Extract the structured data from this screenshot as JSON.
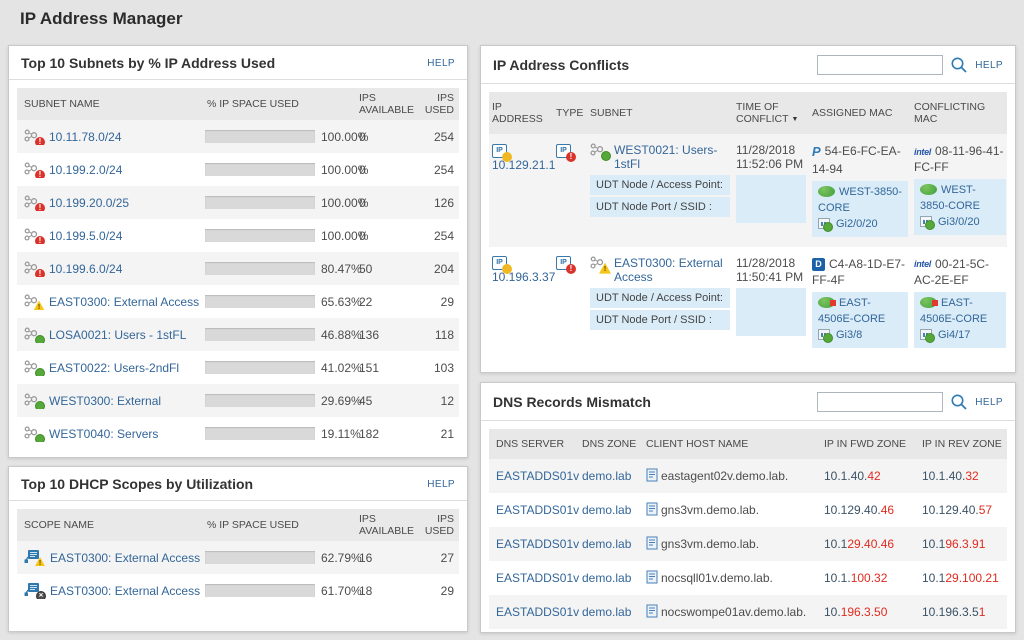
{
  "page": {
    "title": "IP Address Manager"
  },
  "ui": {
    "help": "HELP"
  },
  "panels": {
    "subnets": {
      "title": "Top 10 Subnets by % IP Address Used",
      "columns": {
        "name": "SUBNET NAME",
        "pct": "% IP SPACE USED",
        "available": "IPS AVAILABLE",
        "used": "IPS USED"
      },
      "rows": [
        {
          "name": "10.11.78.0/24",
          "status": "critical",
          "color": "red",
          "pct": 100,
          "pct_label": "100.00%",
          "available": "0",
          "used": "254"
        },
        {
          "name": "10.199.2.0/24",
          "status": "critical",
          "color": "red",
          "pct": 100,
          "pct_label": "100.00%",
          "available": "0",
          "used": "254"
        },
        {
          "name": "10.199.20.0/25",
          "status": "critical",
          "color": "red",
          "pct": 100,
          "pct_label": "100.00%",
          "available": "0",
          "used": "126"
        },
        {
          "name": "10.199.5.0/24",
          "status": "critical",
          "color": "red",
          "pct": 100,
          "pct_label": "100.00%",
          "available": "0",
          "used": "254"
        },
        {
          "name": "10.199.6.0/24",
          "status": "critical",
          "color": "red",
          "pct": 80.47,
          "pct_label": "80.47%",
          "available": "50",
          "used": "204"
        },
        {
          "name": "EAST0300: External Access",
          "status": "warning",
          "color": "yellow",
          "pct": 65.63,
          "pct_label": "65.63%",
          "available": "22",
          "used": "29"
        },
        {
          "name": "LOSA0021: Users - 1stFL",
          "status": "up",
          "color": "green",
          "pct": 46.88,
          "pct_label": "46.88%",
          "available": "136",
          "used": "118"
        },
        {
          "name": "EAST0022: Users-2ndFl",
          "status": "up",
          "color": "green",
          "pct": 41.02,
          "pct_label": "41.02%",
          "available": "151",
          "used": "103"
        },
        {
          "name": "WEST0300: External",
          "status": "up",
          "color": "green",
          "pct": 29.69,
          "pct_label": "29.69%",
          "available": "45",
          "used": "12"
        },
        {
          "name": "WEST0040: Servers",
          "status": "up",
          "color": "green",
          "pct": 19.11,
          "pct_label": "19.11%",
          "available": "182",
          "used": "21"
        }
      ]
    },
    "dhcp": {
      "title": "Top 10 DHCP Scopes by Utilization",
      "columns": {
        "name": "SCOPE NAME",
        "pct": "% IP SPACE USED",
        "available": "IPS AVAILABLE",
        "used": "IPS USED"
      },
      "rows": [
        {
          "name": "EAST0300: External Access",
          "status": "warning",
          "color": "yellow",
          "pct": 62.79,
          "pct_label": "62.79%",
          "available": "16",
          "used": "27"
        },
        {
          "name": "EAST0300: External Access",
          "status": "unknown",
          "color": "gray",
          "pct": 61.7,
          "pct_label": "61.70%",
          "available": "18",
          "used": "29"
        }
      ]
    },
    "conflicts": {
      "title": "IP Address Conflicts",
      "search_value": "",
      "columns": {
        "ip": "IP ADDRESS",
        "type": "TYPE",
        "subnet": "SUBNET",
        "time": "TIME OF CONFLICT",
        "assigned": "ASSIGNED MAC",
        "conflicting": "CONFLICTING MAC"
      },
      "udt_node_label": "UDT Node / Access Point:",
      "udt_port_label": "UDT Node Port / SSID :",
      "rows": [
        {
          "ip": "10.129.21.1",
          "ip_status": "transient",
          "type_status": "conflict",
          "subnet": "WEST0021: Users-1stFl",
          "subnet_status": "up",
          "time": "11/28/2018 11:52:06 PM",
          "assigned": {
            "vendor": "hp",
            "vendor_label": "P",
            "mac": "54-E6-FC-EA-14-94",
            "node": "WEST-3850-CORE",
            "node_status": "up",
            "port": "Gi2/0/20"
          },
          "conflicting": {
            "vendor": "intel",
            "vendor_label": "intel",
            "mac": "08-11-96-41-FC-FF",
            "node": "WEST-3850-CORE",
            "node_status": "up",
            "port": "Gi3/0/20"
          }
        },
        {
          "ip": "10.196.3.37",
          "ip_status": "transient",
          "type_status": "conflict",
          "subnet": "EAST0300: External Access",
          "subnet_status": "warning",
          "time": "11/28/2018 11:50:41 PM",
          "assigned": {
            "vendor": "dell",
            "vendor_label": "D",
            "mac": "C4-A8-1D-E7-FF-4F",
            "node": "EAST-4506E-CORE",
            "node_status": "up-issue",
            "port": "Gi3/8"
          },
          "conflicting": {
            "vendor": "intel",
            "vendor_label": "intel",
            "mac": "00-21-5C-AC-2E-EF",
            "node": "EAST-4506E-CORE",
            "node_status": "up-issue",
            "port": "Gi4/17"
          }
        }
      ]
    },
    "dns": {
      "title": "DNS Records Mismatch",
      "search_value": "",
      "columns": {
        "server": "DNS SERVER",
        "zone": "DNS ZONE",
        "host": "CLIENT HOST NAME",
        "fwd": "IP IN FWD ZONE",
        "rev": "IP IN REV ZONE"
      },
      "rows": [
        {
          "server": "EASTADDS01v",
          "zone": "demo.lab",
          "host": "eastagent02v.demo.lab.",
          "fwd_ok": "10.1.40.",
          "fwd_bad": "42",
          "rev_ok": "10.1.40.",
          "rev_bad": "32"
        },
        {
          "server": "EASTADDS01v",
          "zone": "demo.lab",
          "host": "gns3vm.demo.lab.",
          "fwd_ok": "10.129.40.",
          "fwd_bad": "46",
          "rev_ok": "10.129.40.",
          "rev_bad": "57"
        },
        {
          "server": "EASTADDS01v",
          "zone": "demo.lab",
          "host": "gns3vm.demo.lab.",
          "fwd_ok": "10.1",
          "fwd_bad": "29.40.46",
          "rev_ok": "10.1",
          "rev_bad": "96.3.91"
        },
        {
          "server": "EASTADDS01v",
          "zone": "demo.lab",
          "host": "nocsqll01v.demo.lab.",
          "fwd_ok": "10.1.",
          "fwd_bad": "100.32",
          "rev_ok": "10.1",
          "rev_bad": "29.100.21"
        },
        {
          "server": "EASTADDS01v",
          "zone": "demo.lab",
          "host": "nocswompe01av.demo.lab.",
          "fwd_ok": "10.",
          "fwd_bad": "196.3.50",
          "rev_ok": "10.196.3.5",
          "rev_bad": "1"
        }
      ]
    }
  }
}
